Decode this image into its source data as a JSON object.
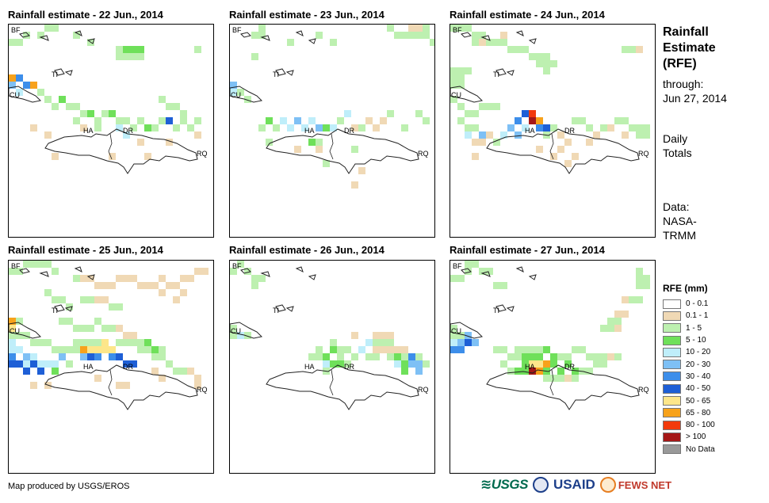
{
  "panels": [
    {
      "title": "Rainfall estimate - 22 Jun., 2014"
    },
    {
      "title": "Rainfall estimate - 23 Jun., 2014"
    },
    {
      "title": "Rainfall estimate - 24 Jun., 2014"
    },
    {
      "title": "Rainfall estimate - 25 Jun., 2014"
    },
    {
      "title": "Rainfall estimate - 26 Jun., 2014"
    },
    {
      "title": "Rainfall estimate - 27 Jun., 2014"
    }
  ],
  "map_labels": {
    "bf": "BF",
    "ti": "TI",
    "cu": "CU",
    "ha": "HA",
    "dr": "DR",
    "rq": "RQ"
  },
  "side": {
    "title_lines": [
      "Rainfall",
      "Estimate",
      "(RFE)"
    ],
    "through_label": "through:",
    "through_date": "Jun 27, 2014",
    "daily_1": "Daily",
    "daily_2": "Totals",
    "data_1": "Data:",
    "data_2": "NASA-",
    "data_3": "TRMM"
  },
  "legend": {
    "title": "RFE (mm)",
    "items": [
      {
        "label": "0 - 0.1",
        "color": "#ffffff"
      },
      {
        "label": "0.1 - 1",
        "color": "#f0d9b5"
      },
      {
        "label": "1 - 5",
        "color": "#bdf0b0"
      },
      {
        "label": "5 - 10",
        "color": "#6fe05a"
      },
      {
        "label": "10 - 20",
        "color": "#bfeefa"
      },
      {
        "label": "20 - 30",
        "color": "#7ec0f5"
      },
      {
        "label": "30 - 40",
        "color": "#3d8eea"
      },
      {
        "label": "40 - 50",
        "color": "#1e5fd6"
      },
      {
        "label": "50 - 65",
        "color": "#fde68a"
      },
      {
        "label": "65 - 80",
        "color": "#f7a21b"
      },
      {
        "label": "80 - 100",
        "color": "#f23a0c"
      },
      {
        "label": "> 100",
        "color": "#a51717"
      },
      {
        "label": "No Data",
        "color": "#999999"
      }
    ]
  },
  "credit": "Map produced by USGS/EROS",
  "logos": {
    "usgs": "USGS",
    "usaid": "USAID",
    "fews": "FEWS NET"
  }
}
